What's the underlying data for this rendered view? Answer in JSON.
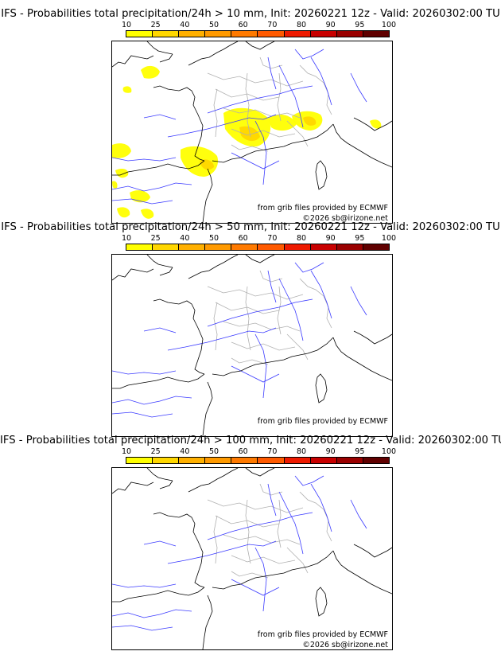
{
  "colorbar": {
    "labels": [
      "10",
      "25",
      "40",
      "50",
      "60",
      "70",
      "80",
      "90",
      "95",
      "100"
    ],
    "colors": [
      "#ffff00",
      "#ffd700",
      "#ffb000",
      "#ff9a00",
      "#ff7a00",
      "#ff5a00",
      "#ee1a00",
      "#c80000",
      "#9a0000",
      "#600000"
    ]
  },
  "panels": [
    {
      "title": "IFS - Probabilities total precipitation/24h > 10 mm, Init: 20260221 12z - Valid: 20260302:00 TU",
      "credit_source": "from grib files provided by ECMWF",
      "credit_copyright": "©2026 sb@irizone.net",
      "has_precip": true
    },
    {
      "title": "IFS - Probabilities total precipitation/24h > 50 mm, Init: 20260221 12z - Valid: 20260302:00 TU",
      "credit_source": "from grib files provided by ECMWF",
      "credit_copyright": "",
      "has_precip": false
    },
    {
      "title": "IFS - Probabilities total precipitation/24h > 100 mm, Init: 20260221 12z - Valid: 20260302:00 TU",
      "credit_source": "from grib files provided by ECMWF",
      "credit_copyright": "©2026 sb@irizone.net",
      "has_precip": false
    }
  ]
}
